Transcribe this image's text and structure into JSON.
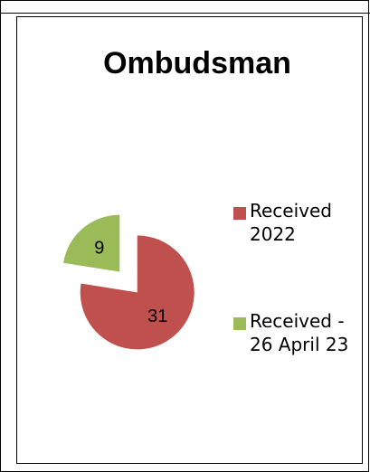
{
  "chart_data": {
    "type": "pie",
    "title": "Ombudsman",
    "categories": [
      "Received 2022",
      "Received - 26 April 23"
    ],
    "values": [
      31,
      9
    ],
    "colors": [
      "#c0504d",
      "#9bbb59"
    ],
    "legend": "right"
  }
}
